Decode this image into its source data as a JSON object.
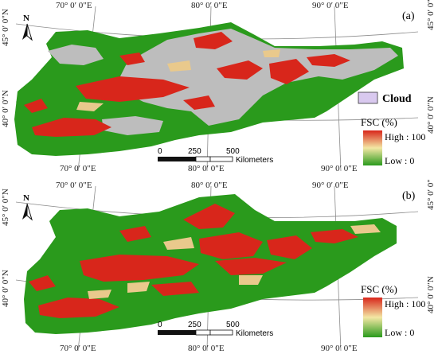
{
  "panels": [
    {
      "label": "(a)",
      "north": "N",
      "top_lon": [
        "70° 0′ 0″E",
        "80° 0′ 0″E",
        "90° 0′ 0″E"
      ],
      "bottom_lon": [
        "70° 0′ 0″E",
        "80° 0′ 0″E",
        "90° 0′ 0″E"
      ],
      "left_lat": [
        "45° 0′ 0″N",
        "40° 0′ 0″N"
      ],
      "right_lat": [
        "45° 0′ 0″N",
        "40° 0′ 0″N"
      ],
      "has_cloud": true,
      "cloud_label": "Cloud",
      "legend_title": "FSC (%)",
      "legend_high": "High : 100",
      "legend_low": "Low : 0",
      "scale_ticks": [
        "0",
        "250",
        "500"
      ],
      "scale_unit": "Kilometers"
    },
    {
      "label": "(b)",
      "north": "N",
      "top_lon": [
        "70° 0′ 0″E",
        "80° 0′ 0″E",
        "90° 0′ 0″E"
      ],
      "bottom_lon": [
        "70° 0′ 0″E",
        "80° 0′ 0″E",
        "90° 0′ 0″E"
      ],
      "left_lat": [
        "45° 0′ 0″N",
        "40° 0′ 0″N"
      ],
      "right_lat": [
        "45° 0′ 0″N",
        "40° 0′ 0″N"
      ],
      "has_cloud": false,
      "cloud_label": "",
      "legend_title": "FSC (%)",
      "legend_high": "High : 100",
      "legend_low": "Low : 0",
      "scale_ticks": [
        "0",
        "250",
        "500"
      ],
      "scale_unit": "Kilometers"
    }
  ],
  "colors": {
    "snow_free": "#2a9a1c",
    "snow": "#d8261b",
    "mid": "#e9c98c",
    "cloud": "#bdbdbd",
    "cloud_legend": "#d9c9ef",
    "graticule": "#8c8c8c"
  }
}
